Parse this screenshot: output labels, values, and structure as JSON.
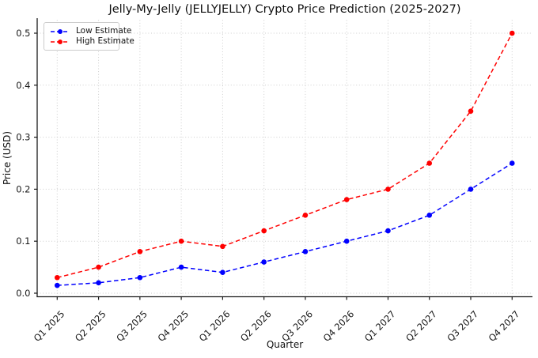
{
  "chart_data": {
    "type": "line",
    "title": "Jelly-My-Jelly (JELLYJELLY) Crypto Price Prediction (2025-2027)",
    "xlabel": "Quarter",
    "ylabel": "Price (USD)",
    "categories": [
      "Q1 2025",
      "Q2 2025",
      "Q3 2025",
      "Q4 2025",
      "Q1 2026",
      "Q2 2026",
      "Q3 2026",
      "Q4 2026",
      "Q1 2027",
      "Q2 2027",
      "Q3 2027",
      "Q4 2027"
    ],
    "series": [
      {
        "name": "Low Estimate",
        "color": "#0000ff",
        "linestyle": "dashed",
        "marker": "circle",
        "values": [
          0.015,
          0.02,
          0.03,
          0.05,
          0.04,
          0.06,
          0.08,
          0.1,
          0.12,
          0.15,
          0.2,
          0.25
        ]
      },
      {
        "name": "High Estimate",
        "color": "#ff0000",
        "linestyle": "dashed",
        "marker": "circle",
        "values": [
          0.03,
          0.05,
          0.08,
          0.1,
          0.09,
          0.12,
          0.15,
          0.18,
          0.2,
          0.25,
          0.35,
          0.5
        ]
      }
    ],
    "yticks": [
      0.0,
      0.1,
      0.2,
      0.3,
      0.4,
      0.5
    ],
    "ytick_labels": [
      "0.0",
      "0.1",
      "0.2",
      "0.3",
      "0.4",
      "0.5"
    ],
    "ylim": [
      -0.008,
      0.527
    ],
    "grid": "dotted both axes",
    "grid_color": "#cdcdcd",
    "axis_color": "#1a1a1a",
    "background": "#ffffff",
    "legend_position": "upper left"
  }
}
